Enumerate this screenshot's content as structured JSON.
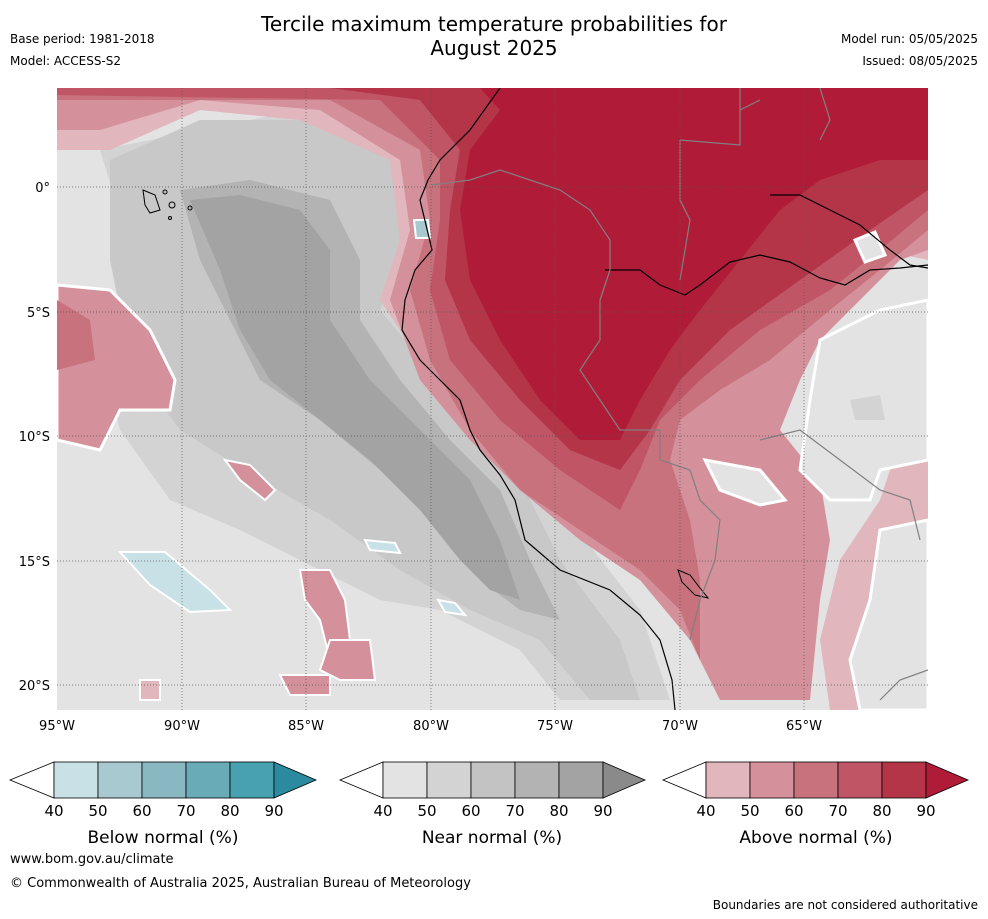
{
  "header": {
    "title_line1": "Tercile maximum temperature probabilities for",
    "title_line2": "August 2025",
    "base_period": "Base period: 1981-2018",
    "model": "Model: ACCESS-S2",
    "model_run": "Model run: 05/05/2025",
    "issued": "Issued: 08/05/2025"
  },
  "map": {
    "x_ticks": [
      "95°W",
      "90°W",
      "85°W",
      "80°W",
      "75°W",
      "70°W",
      "65°W"
    ],
    "y_ticks": [
      "0°",
      "5°S",
      "10°S",
      "15°S",
      "20°S"
    ],
    "colors": {
      "ocean_base": "#e3e3e3",
      "near_normal_60": "#c8c8c8",
      "near_normal_70": "#b3b3b3",
      "near_normal_80": "#a3a3a3",
      "above_40": "#e2b6bd",
      "above_50": "#d4919b",
      "above_60": "#c8727e",
      "above_70": "#bf5565",
      "above_80": "#b43547",
      "above_90": "#b01c38",
      "below_40": "#c8e1e6",
      "coastline": "#000000",
      "borders": "#808080"
    }
  },
  "colorbars": [
    {
      "name": "below",
      "label": "Below normal (%)",
      "ticks": [
        "40",
        "50",
        "60",
        "70",
        "80",
        "90"
      ],
      "colors": [
        "#c8e1e6",
        "#a7c9cf",
        "#89b8c3",
        "#69abb6",
        "#47a1ae",
        "#2b8aa0"
      ]
    },
    {
      "name": "near",
      "label": "Near normal (%)",
      "ticks": [
        "40",
        "50",
        "60",
        "70",
        "80",
        "90"
      ],
      "colors": [
        "#e3e3e3",
        "#d3d3d3",
        "#c3c3c3",
        "#b3b3b3",
        "#a3a3a3",
        "#8a8a8a"
      ]
    },
    {
      "name": "above",
      "label": "Above normal (%)",
      "ticks": [
        "40",
        "50",
        "60",
        "70",
        "80",
        "90"
      ],
      "colors": [
        "#e2b6bd",
        "#d4919b",
        "#c8727e",
        "#bf5565",
        "#b43547",
        "#b01c38"
      ]
    }
  ],
  "footer": {
    "url": "www.bom.gov.au/climate",
    "copyright": "© Commonwealth of Australia 2025, Australian Bureau of Meteorology",
    "disclaimer": "Boundaries are not considered authoritative"
  }
}
